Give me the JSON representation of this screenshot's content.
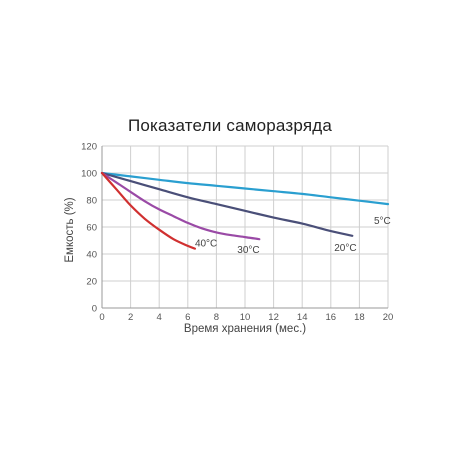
{
  "chart_data": {
    "type": "line",
    "title": "Показатели саморазряда",
    "xlabel": "Время хранения (мес.)",
    "ylabel": "Емкость (%)",
    "xlim": [
      0,
      20
    ],
    "ylim": [
      0,
      120
    ],
    "xticks": [
      "0",
      "2",
      "4",
      "6",
      "8",
      "10",
      "12",
      "14",
      "16",
      "18",
      "20"
    ],
    "yticks": [
      "0",
      "20",
      "40",
      "60",
      "80",
      "100",
      "120"
    ],
    "grid": true,
    "series": [
      {
        "name": "5°C",
        "color": "#2a9fd0",
        "x": [
          0,
          2,
          4,
          6,
          8,
          10,
          12,
          14,
          16,
          18,
          20
        ],
        "y": [
          100,
          97.5,
          95,
          92.5,
          90.5,
          88.5,
          86.5,
          84.5,
          82,
          79.5,
          77
        ]
      },
      {
        "name": "20°C",
        "color": "#4a4f78",
        "x": [
          0,
          2,
          4,
          6,
          8,
          10,
          12,
          14,
          16,
          17.5
        ],
        "y": [
          100,
          94,
          88,
          82,
          77,
          72,
          67,
          62.5,
          57,
          53.5
        ]
      },
      {
        "name": "30°C",
        "color": "#9a4aa6",
        "x": [
          0,
          1,
          2,
          3,
          4,
          5,
          6,
          7,
          8,
          9,
          10,
          11
        ],
        "y": [
          100,
          93,
          86,
          79,
          73,
          68,
          63,
          59,
          56,
          54,
          52.5,
          51
        ]
      },
      {
        "name": "40°C",
        "color": "#d03030",
        "x": [
          0,
          1,
          2,
          3,
          4,
          5,
          6,
          6.5
        ],
        "y": [
          100,
          88,
          76,
          66,
          58,
          51,
          46,
          44
        ]
      }
    ]
  }
}
